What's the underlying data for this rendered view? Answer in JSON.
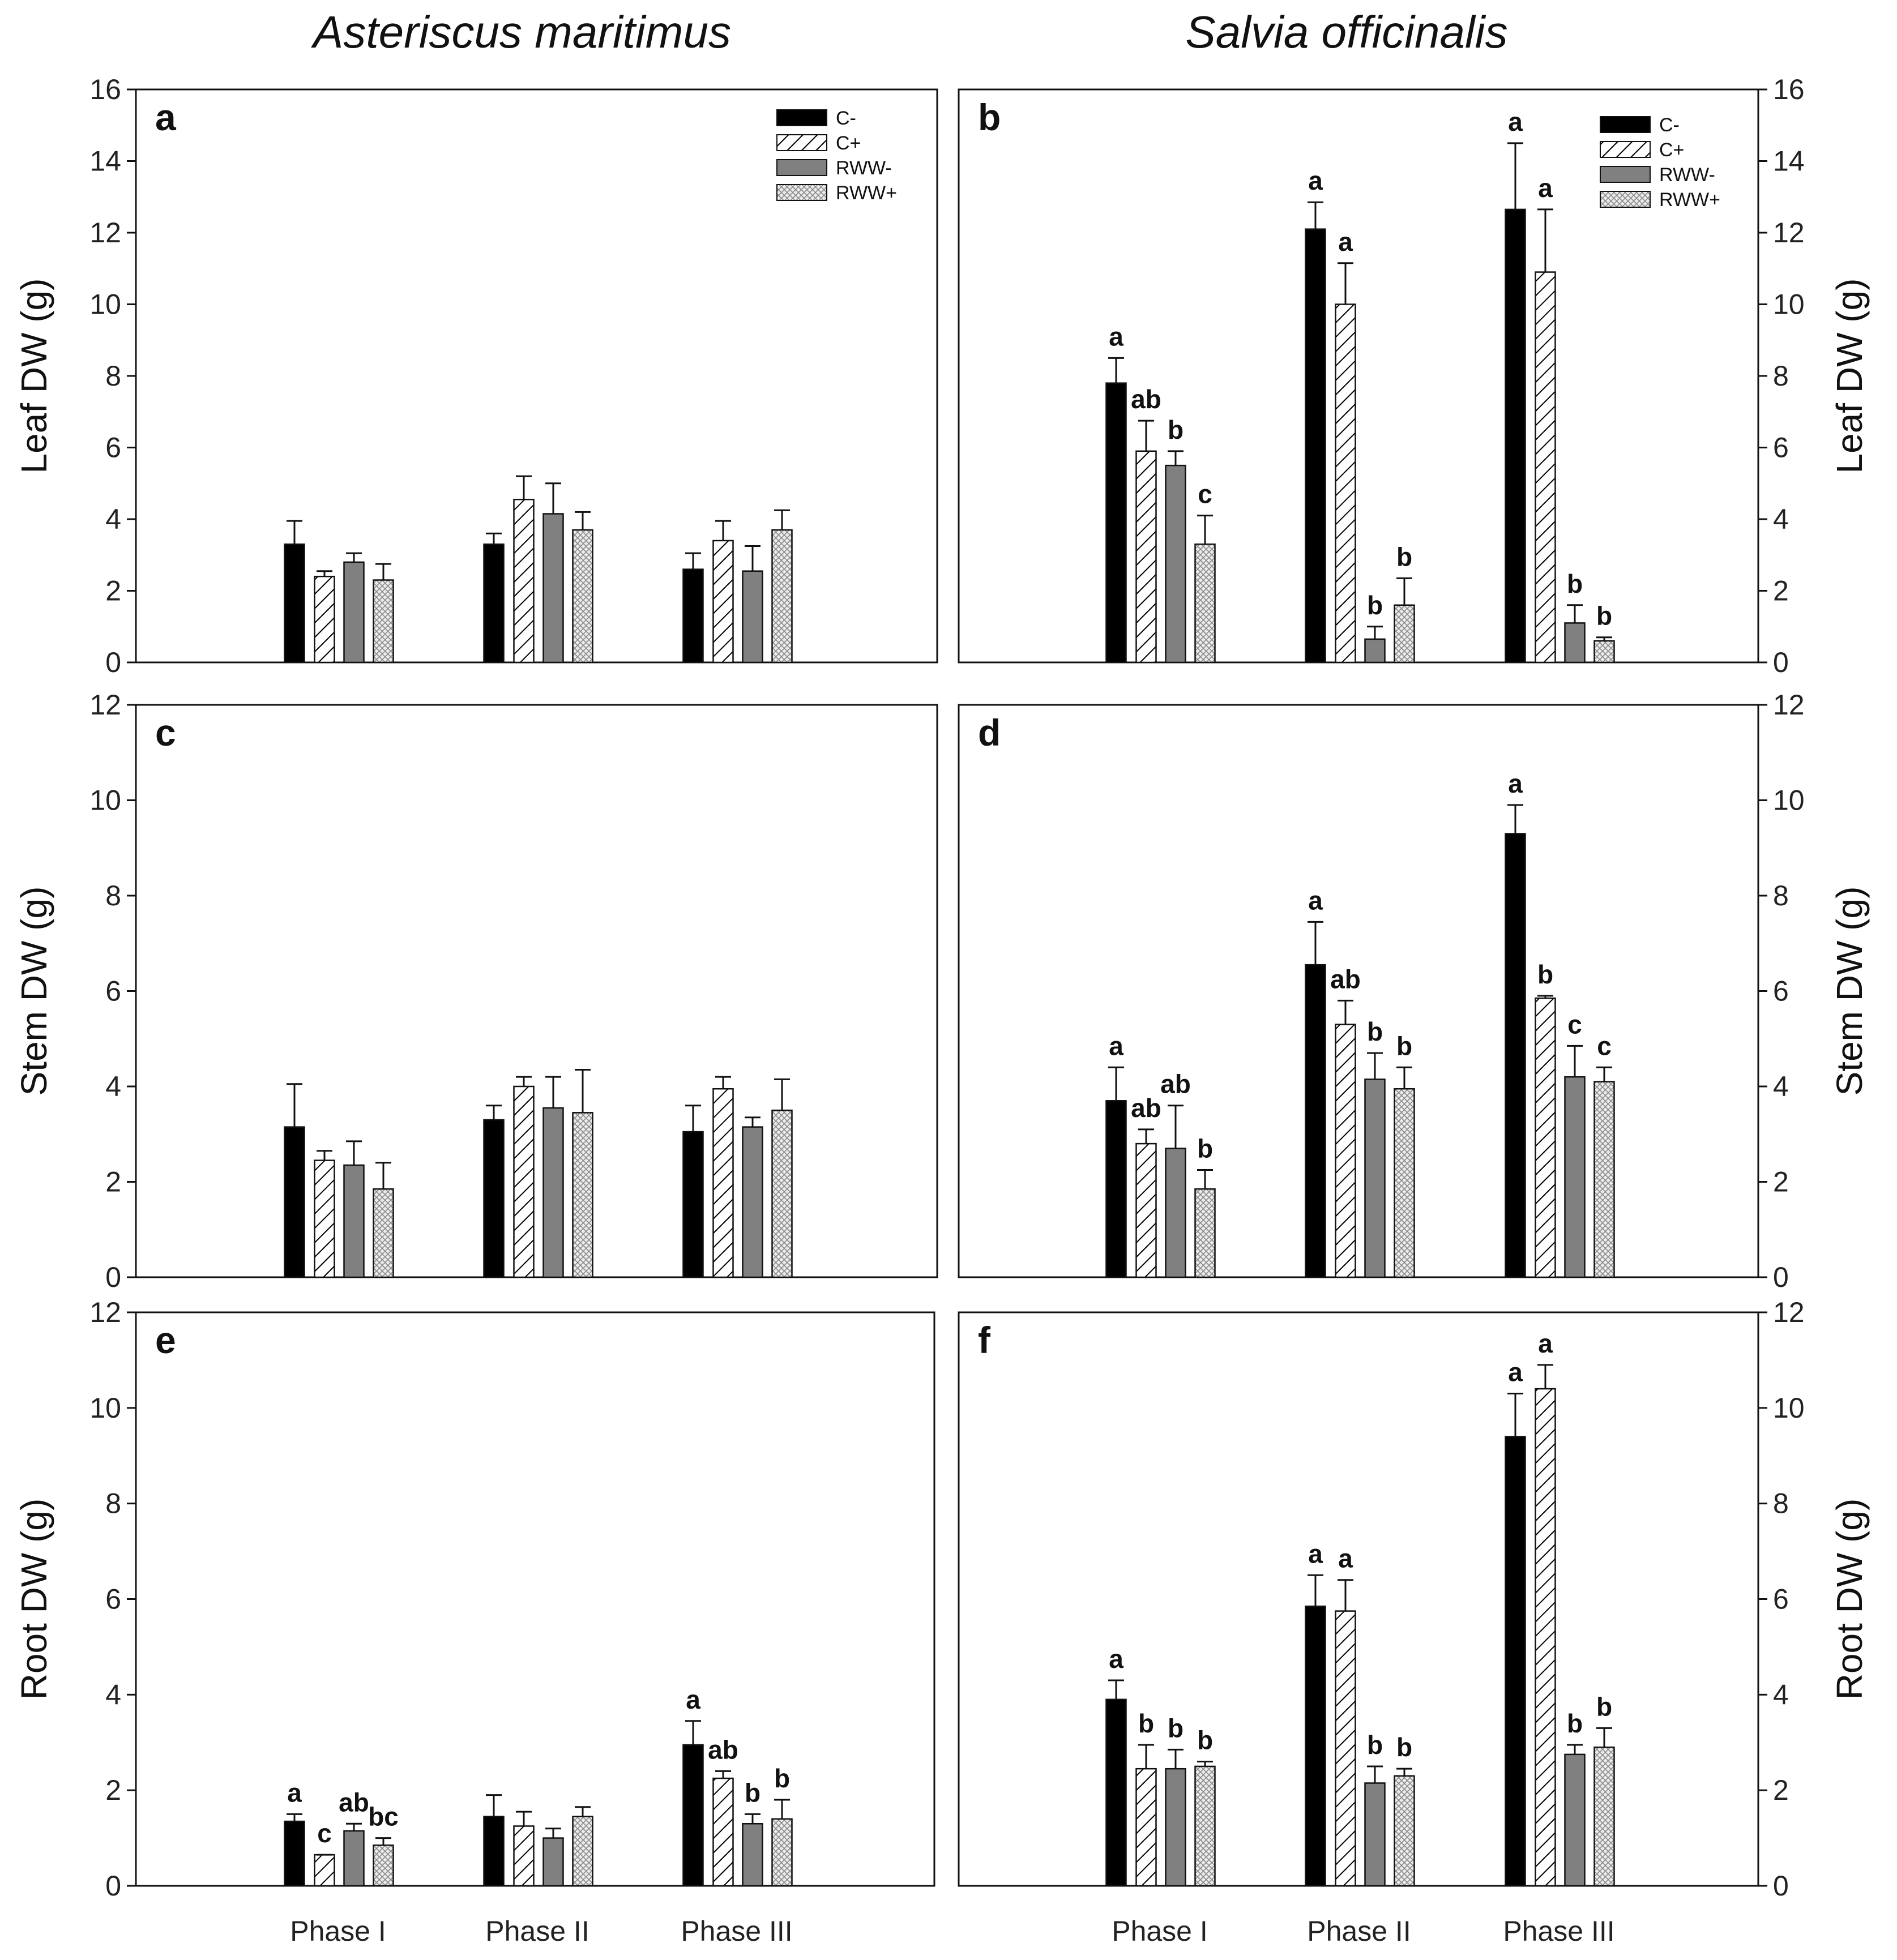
{
  "figure": {
    "species_left": "Asteriscus maritimus",
    "species_right": "Salvia officinalis"
  },
  "colors": {
    "C-": "#000000",
    "C+": "#ffffff",
    "RWW-": "#808080",
    "RWW+": "#d0d0d0"
  },
  "chart_data": [
    {
      "type": "bar",
      "panel": "a",
      "title": "a",
      "species": "Asteriscus maritimus",
      "ylabel": "Leaf DW (g)",
      "ylim": [
        0,
        16
      ],
      "yticks": [
        0,
        2,
        4,
        6,
        8,
        10,
        12,
        14,
        16
      ],
      "categories": [
        "Phase I",
        "Phase II",
        "Phase III"
      ],
      "legend": [
        "C-",
        "C+",
        "RWW-",
        "RWW+"
      ],
      "series": [
        {
          "name": "C-",
          "values": [
            3.3,
            3.3,
            2.6
          ],
          "errors": [
            0.65,
            0.3,
            0.45
          ],
          "letters": [
            "",
            "",
            ""
          ]
        },
        {
          "name": "C+",
          "values": [
            2.4,
            4.55,
            3.4
          ],
          "errors": [
            0.15,
            0.65,
            0.55
          ],
          "letters": [
            "",
            "",
            ""
          ]
        },
        {
          "name": "RWW-",
          "values": [
            2.8,
            4.15,
            2.55
          ],
          "errors": [
            0.25,
            0.85,
            0.7
          ],
          "letters": [
            "",
            "",
            ""
          ]
        },
        {
          "name": "RWW+",
          "values": [
            2.3,
            3.7,
            3.7
          ],
          "errors": [
            0.45,
            0.5,
            0.55
          ],
          "letters": [
            "",
            "",
            ""
          ]
        }
      ]
    },
    {
      "type": "bar",
      "panel": "b",
      "title": "b",
      "species": "Salvia officinalis",
      "ylabel": "Leaf DW (g)",
      "ylim": [
        0,
        16
      ],
      "yticks": [
        0,
        2,
        4,
        6,
        8,
        10,
        12,
        14,
        16
      ],
      "categories": [
        "Phase I",
        "Phase II",
        "Phase III"
      ],
      "legend": [
        "C-",
        "C+",
        "RWW-",
        "RWW+"
      ],
      "series": [
        {
          "name": "C-",
          "values": [
            7.8,
            12.1,
            12.65
          ],
          "errors": [
            0.7,
            0.75,
            1.85
          ],
          "letters": [
            "a",
            "a",
            "a"
          ]
        },
        {
          "name": "C+",
          "values": [
            5.9,
            10.0,
            10.9
          ],
          "errors": [
            0.85,
            1.15,
            1.75
          ],
          "letters": [
            "ab",
            "a",
            "a"
          ]
        },
        {
          "name": "RWW-",
          "values": [
            5.5,
            0.65,
            1.1
          ],
          "errors": [
            0.4,
            0.35,
            0.5
          ],
          "letters": [
            "b",
            "b",
            "b"
          ]
        },
        {
          "name": "RWW+",
          "values": [
            3.3,
            1.6,
            0.6
          ],
          "errors": [
            0.8,
            0.75,
            0.1
          ],
          "letters": [
            "c",
            "b",
            "b"
          ]
        }
      ]
    },
    {
      "type": "bar",
      "panel": "c",
      "title": "c",
      "species": "Asteriscus maritimus",
      "ylabel": "Stem DW (g)",
      "ylim": [
        0,
        12
      ],
      "yticks": [
        0,
        2,
        4,
        6,
        8,
        10,
        12
      ],
      "categories": [
        "Phase I",
        "Phase II",
        "Phase III"
      ],
      "legend": [],
      "series": [
        {
          "name": "C-",
          "values": [
            3.15,
            3.3,
            3.05
          ],
          "errors": [
            0.9,
            0.3,
            0.55
          ],
          "letters": [
            "",
            "",
            ""
          ]
        },
        {
          "name": "C+",
          "values": [
            2.45,
            4.0,
            3.95
          ],
          "errors": [
            0.2,
            0.2,
            0.25
          ],
          "letters": [
            "",
            "",
            ""
          ]
        },
        {
          "name": "RWW-",
          "values": [
            2.35,
            3.55,
            3.15
          ],
          "errors": [
            0.5,
            0.65,
            0.2
          ],
          "letters": [
            "",
            "",
            ""
          ]
        },
        {
          "name": "RWW+",
          "values": [
            1.85,
            3.45,
            3.5
          ],
          "errors": [
            0.55,
            0.9,
            0.65
          ],
          "letters": [
            "",
            "",
            ""
          ]
        }
      ]
    },
    {
      "type": "bar",
      "panel": "d",
      "title": "d",
      "species": "Salvia officinalis",
      "ylabel": "Stem DW (g)",
      "ylim": [
        0,
        12
      ],
      "yticks": [
        0,
        2,
        4,
        6,
        8,
        10,
        12
      ],
      "categories": [
        "Phase I",
        "Phase II",
        "Phase III"
      ],
      "legend": [],
      "series": [
        {
          "name": "C-",
          "values": [
            3.7,
            6.55,
            9.3
          ],
          "errors": [
            0.7,
            0.9,
            0.6
          ],
          "letters": [
            "a",
            "a",
            "a"
          ]
        },
        {
          "name": "C+",
          "values": [
            2.8,
            5.3,
            5.85
          ],
          "errors": [
            0.3,
            0.5,
            0.05
          ],
          "letters": [
            "ab",
            "ab",
            "b"
          ]
        },
        {
          "name": "RWW-",
          "values": [
            2.7,
            4.15,
            4.2
          ],
          "errors": [
            0.9,
            0.55,
            0.65
          ],
          "letters": [
            "ab",
            "b",
            "c"
          ]
        },
        {
          "name": "RWW+",
          "values": [
            1.85,
            3.95,
            4.1
          ],
          "errors": [
            0.4,
            0.45,
            0.3
          ],
          "letters": [
            "b",
            "b",
            "c"
          ]
        }
      ]
    },
    {
      "type": "bar",
      "panel": "e",
      "title": "e",
      "species": "Asteriscus maritimus",
      "ylabel": "Root DW (g)",
      "ylim": [
        0,
        12
      ],
      "yticks": [
        0,
        2,
        4,
        6,
        8,
        10,
        12
      ],
      "categories": [
        "Phase I",
        "Phase II",
        "Phase III"
      ],
      "legend": [],
      "series": [
        {
          "name": "C-",
          "values": [
            1.35,
            1.45,
            2.95
          ],
          "errors": [
            0.15,
            0.45,
            0.5
          ],
          "letters": [
            "a",
            "",
            "a"
          ]
        },
        {
          "name": "C+",
          "values": [
            0.65,
            1.25,
            2.25
          ],
          "errors": [
            0.0,
            0.3,
            0.15
          ],
          "letters": [
            "c",
            "",
            "ab"
          ]
        },
        {
          "name": "RWW-",
          "values": [
            1.15,
            1.0,
            1.3
          ],
          "errors": [
            0.15,
            0.2,
            0.2
          ],
          "letters": [
            "ab",
            "",
            "b"
          ]
        },
        {
          "name": "RWW+",
          "values": [
            0.85,
            1.45,
            1.4
          ],
          "errors": [
            0.15,
            0.2,
            0.4
          ],
          "letters": [
            "bc",
            "",
            "b"
          ]
        }
      ]
    },
    {
      "type": "bar",
      "panel": "f",
      "title": "f",
      "species": "Salvia officinalis",
      "ylabel": "Root DW (g)",
      "ylim": [
        0,
        12
      ],
      "yticks": [
        0,
        2,
        4,
        6,
        8,
        10,
        12
      ],
      "categories": [
        "Phase I",
        "Phase II",
        "Phase III"
      ],
      "legend": [],
      "series": [
        {
          "name": "C-",
          "values": [
            3.9,
            5.85,
            9.4
          ],
          "errors": [
            0.4,
            0.65,
            0.9
          ],
          "letters": [
            "a",
            "a",
            "a"
          ]
        },
        {
          "name": "C+",
          "values": [
            2.45,
            5.75,
            10.4
          ],
          "errors": [
            0.5,
            0.65,
            0.5
          ],
          "letters": [
            "b",
            "a",
            "a"
          ]
        },
        {
          "name": "RWW-",
          "values": [
            2.45,
            2.15,
            2.75
          ],
          "errors": [
            0.4,
            0.35,
            0.2
          ],
          "letters": [
            "b",
            "b",
            "b"
          ]
        },
        {
          "name": "RWW+",
          "values": [
            2.5,
            2.3,
            2.9
          ],
          "errors": [
            0.1,
            0.15,
            0.4
          ],
          "letters": [
            "b",
            "b",
            "b"
          ]
        }
      ]
    }
  ]
}
